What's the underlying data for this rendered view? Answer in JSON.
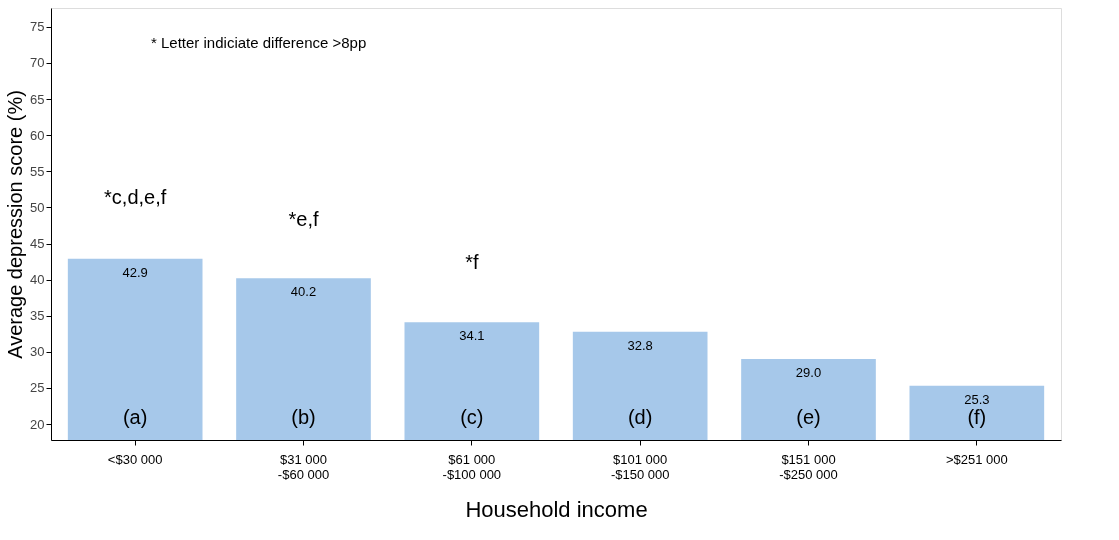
{
  "chart_data": {
    "type": "bar",
    "categories": [
      "<$30 000",
      "$31 000\n-$60 000",
      "$61 000\n-$100 000",
      "$101 000\n-$150 000",
      "$151 000\n-$250 000",
      ">$251 000"
    ],
    "values": [
      42.9,
      40.2,
      34.1,
      32.8,
      29.0,
      25.3
    ],
    "color": "#a6c8ea",
    "xlabel": "Household income",
    "ylabel": "Average depression score (%)",
    "ylim": [
      17.8,
      77.6
    ],
    "yticks": [
      20,
      25,
      30,
      35,
      40,
      45,
      50,
      55,
      60,
      65,
      70,
      75
    ],
    "grid": false,
    "value_labels": [
      "42.9",
      "40.2",
      "34.1",
      "32.8",
      "29.0",
      "25.3"
    ],
    "annotations": [
      "* Letter indiciate difference >8pp",
      "*c,d,e,f",
      "*e,f",
      "*f",
      "(a)",
      "(b)",
      "(c)",
      "(d)",
      "(e)",
      "(f)"
    ]
  }
}
